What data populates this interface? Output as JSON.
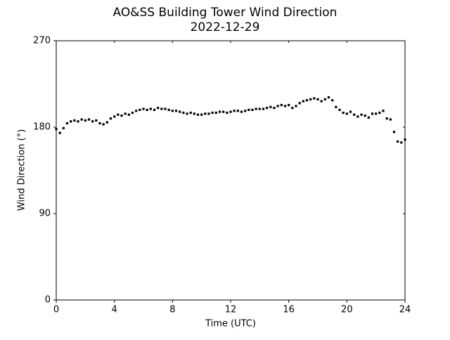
{
  "chart_data": {
    "type": "scatter",
    "title": "AO&SS Building Tower Wind Direction",
    "subtitle": "2022-12-29",
    "x_label": "Time (UTC)",
    "y_label": "Wind Direction (°)",
    "color": "#000000",
    "xlim": [
      0,
      24
    ],
    "xticks": [
      0,
      4,
      8,
      12,
      16,
      20,
      24
    ],
    "ylim": [
      0,
      270
    ],
    "yticks": [
      0,
      90,
      180,
      270
    ],
    "x": [
      0,
      0.25,
      0.5,
      0.75,
      1,
      1.25,
      1.5,
      1.75,
      2,
      2.25,
      2.5,
      2.75,
      3,
      3.25,
      3.5,
      3.75,
      4,
      4.25,
      4.5,
      4.75,
      5,
      5.25,
      5.5,
      5.75,
      6,
      6.25,
      6.5,
      6.75,
      7,
      7.25,
      7.5,
      7.75,
      8,
      8.25,
      8.5,
      8.75,
      9,
      9.25,
      9.5,
      9.75,
      10,
      10.25,
      10.5,
      10.75,
      11,
      11.25,
      11.5,
      11.75,
      12,
      12.25,
      12.5,
      12.75,
      13,
      13.25,
      13.5,
      13.75,
      14,
      14.25,
      14.5,
      14.75,
      15,
      15.25,
      15.5,
      15.75,
      16,
      16.25,
      16.5,
      16.75,
      17,
      17.25,
      17.5,
      17.75,
      18,
      18.25,
      18.5,
      18.75,
      19,
      19.25,
      19.5,
      19.75,
      20,
      20.25,
      20.5,
      20.75,
      21,
      21.25,
      21.5,
      21.75,
      22,
      22.25,
      22.5,
      22.75,
      23,
      23.25,
      23.5,
      23.75,
      24
    ],
    "values": [
      178,
      174,
      179,
      184,
      186,
      187,
      186,
      188,
      187,
      188,
      186,
      187,
      184,
      183,
      185,
      189,
      191,
      193,
      192,
      194,
      193,
      195,
      197,
      198,
      199,
      198,
      199,
      198,
      200,
      199,
      199,
      198,
      197,
      197,
      196,
      195,
      194,
      195,
      194,
      193,
      193,
      194,
      194,
      195,
      195,
      196,
      196,
      195,
      196,
      197,
      197,
      196,
      197,
      198,
      198,
      199,
      199,
      199,
      200,
      201,
      200,
      202,
      203,
      202,
      203,
      200,
      202,
      205,
      207,
      208,
      209,
      210,
      209,
      207,
      209,
      211,
      208,
      201,
      198,
      195,
      194,
      196,
      193,
      191,
      193,
      192,
      190,
      194,
      194,
      195,
      197,
      189,
      188,
      175,
      165,
      164,
      167
    ]
  }
}
